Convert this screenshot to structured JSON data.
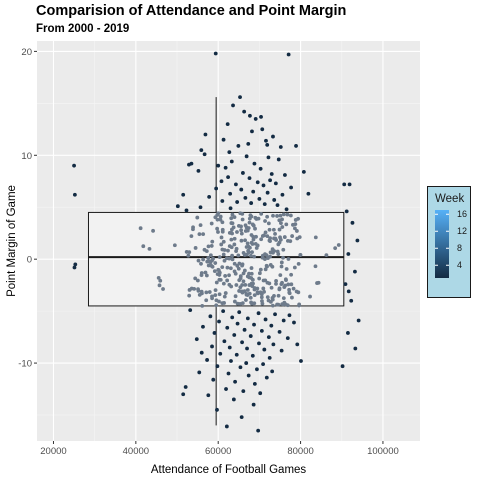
{
  "title": "Comparision of Attendance and Point Margin",
  "subtitle": "From 2000 - 2019",
  "chart_data": {
    "type": "scatter",
    "title": "Comparision of Attendance and Point Margin",
    "subtitle": "From 2000 - 2019",
    "xlabel": "Attendance of Football Games",
    "ylabel": "Point Margin of Game",
    "xlim": [
      16000,
      109000
    ],
    "ylim": [
      -17.5,
      21
    ],
    "x_ticks": [
      20000,
      40000,
      60000,
      80000,
      100000
    ],
    "x_tick_labels": [
      "20000",
      "40000",
      "60000",
      "80000",
      "100000"
    ],
    "y_ticks": [
      -10,
      0,
      10,
      20
    ],
    "y_tick_labels": [
      "-10",
      "0",
      "10",
      "20"
    ],
    "grid": true,
    "legend": {
      "title": "Week",
      "position": "right",
      "tick_values": [
        4,
        8,
        12,
        16
      ],
      "tick_labels": [
        "4",
        "8",
        "12",
        "16"
      ],
      "range": [
        1,
        17
      ],
      "low_color": "#132b43",
      "high_color": "#56b1f7",
      "background": "#add8e6"
    },
    "boxplot": {
      "x_min": 28500,
      "x_max": 90500,
      "q1": -4.5,
      "median": 0.2,
      "q3": 4.5,
      "x_center": 59500,
      "whisker_low": -16,
      "whisker_high": 15.6,
      "fill": "#f2f2f2",
      "line_color": "#1a1a1a"
    },
    "inner_point_color": "#6e7b8b",
    "outer_point_color": "#132b43",
    "series": [
      {
        "points": [
          [
            25000,
            9
          ],
          [
            25200,
            6.2
          ],
          [
            25300,
            -0.5
          ],
          [
            25100,
            -0.8
          ],
          [
            59400,
            19.8
          ],
          [
            77100,
            19.7
          ],
          [
            65300,
            15.6
          ],
          [
            63600,
            14.8
          ],
          [
            66300,
            14.2
          ],
          [
            70400,
            13.7
          ],
          [
            69100,
            13.5
          ],
          [
            70700,
            12.5
          ],
          [
            68200,
            12.3
          ],
          [
            73300,
            11.8
          ],
          [
            61300,
            11.5
          ],
          [
            71600,
            11.4
          ],
          [
            67300,
            11.1
          ],
          [
            64900,
            10.9
          ],
          [
            75200,
            10.8
          ],
          [
            55900,
            10.5
          ],
          [
            56700,
            10.1
          ],
          [
            62700,
            10.3
          ],
          [
            66900,
            9.9
          ],
          [
            72200,
            9.8
          ],
          [
            74700,
            9.6
          ],
          [
            53500,
            9.2
          ],
          [
            52900,
            9.1
          ],
          [
            63300,
            9.4
          ],
          [
            68800,
            9.2
          ],
          [
            61800,
            8.8
          ],
          [
            70300,
            8.7
          ],
          [
            55200,
            8.5
          ],
          [
            66000,
            8.3
          ],
          [
            73000,
            8.2
          ],
          [
            76200,
            8.1
          ],
          [
            62400,
            7.9
          ],
          [
            67600,
            7.8
          ],
          [
            72600,
            7.6
          ],
          [
            60800,
            7.5
          ],
          [
            69600,
            7.4
          ],
          [
            74000,
            7.3
          ],
          [
            64300,
            7.2
          ],
          [
            71000,
            7.1
          ],
          [
            90600,
            7.2
          ],
          [
            91900,
            7.2
          ],
          [
            77700,
            6.9
          ],
          [
            59500,
            6.8
          ],
          [
            65600,
            6.7
          ],
          [
            68500,
            6.5
          ],
          [
            72000,
            6.4
          ],
          [
            62900,
            6.3
          ],
          [
            75600,
            6.2
          ],
          [
            51500,
            6.2
          ],
          [
            57800,
            6.0
          ],
          [
            66600,
            5.9
          ],
          [
            70000,
            5.8
          ],
          [
            73600,
            5.7
          ],
          [
            61000,
            5.6
          ],
          [
            64600,
            5.5
          ],
          [
            68000,
            5.4
          ],
          [
            71300,
            5.3
          ],
          [
            74400,
            5.2
          ],
          [
            50200,
            5.1
          ],
          [
            55700,
            5.0
          ],
          [
            63000,
            4.9
          ],
          [
            76600,
            4.8
          ],
          [
            52300,
            4.7
          ],
          [
            91200,
            4.6
          ],
          [
            92600,
            3.5
          ],
          [
            93800,
            1.8
          ],
          [
            91600,
            0.5
          ],
          [
            93200,
            -1.2
          ],
          [
            90900,
            -2.4
          ],
          [
            91700,
            -3.1
          ],
          [
            92300,
            -4.0
          ],
          [
            94100,
            -5.9
          ],
          [
            91500,
            -7.1
          ],
          [
            93300,
            -8.6
          ],
          [
            90200,
            -10.3
          ],
          [
            53200,
            -4.9
          ],
          [
            61200,
            -5.0
          ],
          [
            65100,
            -5.1
          ],
          [
            69800,
            -5.2
          ],
          [
            73800,
            -5.3
          ],
          [
            77300,
            -5.4
          ],
          [
            58100,
            -5.5
          ],
          [
            63400,
            -5.6
          ],
          [
            67200,
            -5.7
          ],
          [
            71500,
            -5.8
          ],
          [
            75900,
            -5.9
          ],
          [
            60200,
            -6.0
          ],
          [
            64700,
            -6.2
          ],
          [
            68700,
            -6.3
          ],
          [
            72900,
            -6.4
          ],
          [
            56300,
            -6.5
          ],
          [
            62200,
            -6.6
          ],
          [
            66400,
            -6.8
          ],
          [
            70600,
            -6.9
          ],
          [
            74900,
            -7.0
          ],
          [
            59100,
            -7.1
          ],
          [
            63900,
            -7.3
          ],
          [
            67900,
            -7.4
          ],
          [
            72300,
            -7.5
          ],
          [
            76900,
            -7.6
          ],
          [
            54800,
            -7.7
          ],
          [
            61500,
            -7.9
          ],
          [
            65800,
            -8.0
          ],
          [
            69900,
            -8.1
          ],
          [
            73400,
            -8.2
          ],
          [
            58500,
            -8.4
          ],
          [
            62800,
            -8.5
          ],
          [
            67000,
            -8.6
          ],
          [
            71200,
            -8.7
          ],
          [
            75400,
            -8.8
          ],
          [
            56000,
            -9.0
          ],
          [
            60500,
            -9.1
          ],
          [
            64500,
            -9.2
          ],
          [
            68400,
            -9.3
          ],
          [
            72500,
            -9.5
          ],
          [
            57300,
            -9.7
          ],
          [
            63100,
            -9.8
          ],
          [
            66800,
            -10.0
          ],
          [
            70900,
            -10.1
          ],
          [
            59800,
            -10.3
          ],
          [
            65400,
            -10.4
          ],
          [
            69400,
            -10.6
          ],
          [
            73100,
            -10.8
          ],
          [
            55400,
            -10.9
          ],
          [
            62500,
            -11.0
          ],
          [
            67400,
            -11.2
          ],
          [
            71800,
            -11.4
          ],
          [
            58800,
            -11.6
          ],
          [
            64100,
            -11.8
          ],
          [
            68900,
            -12.0
          ],
          [
            52100,
            -12.3
          ],
          [
            61900,
            -12.5
          ],
          [
            66100,
            -12.7
          ],
          [
            70200,
            -12.9
          ],
          [
            57600,
            -13.1
          ],
          [
            63800,
            -13.5
          ],
          [
            51500,
            -13.0
          ],
          [
            68600,
            -14.0
          ],
          [
            59700,
            -14.5
          ],
          [
            65700,
            -15.2
          ],
          [
            62100,
            -16.1
          ],
          [
            69700,
            -16.5
          ],
          [
            78400,
            -6.1
          ],
          [
            79200,
            -8.2
          ],
          [
            80100,
            -9.8
          ],
          [
            82300,
            -3.6
          ],
          [
            84000,
            -2.3
          ],
          [
            83700,
            2.1
          ],
          [
            81900,
            6.3
          ],
          [
            80800,
            8.4
          ],
          [
            78900,
            10.9
          ],
          [
            56900,
            12.0
          ],
          [
            62300,
            13.0
          ],
          [
            67700,
            13.8
          ],
          [
            71900,
            11.0
          ],
          [
            60000,
            9.0
          ]
        ]
      }
    ]
  }
}
